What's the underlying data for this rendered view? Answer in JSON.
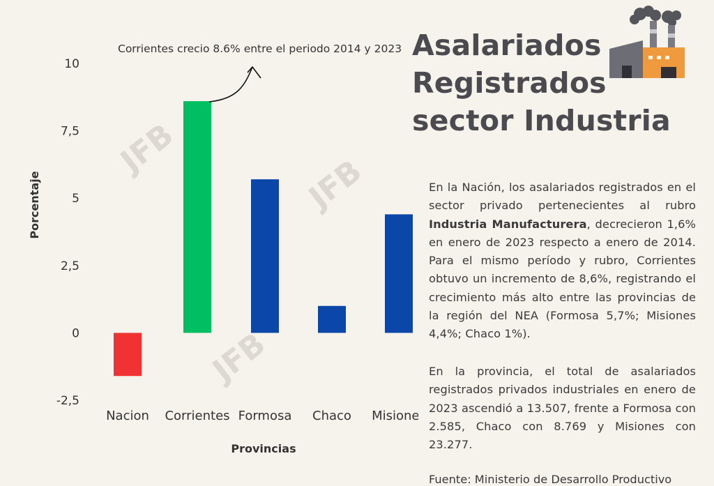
{
  "title_lines": [
    "Asalariados",
    "Registrados",
    "sector Industria"
  ],
  "annotation": "Corrientes crecio 8.6% entre el periodo 2014 y 2023",
  "watermark": "JFB",
  "paragraph1": {
    "pre": "En la Nación, los asalariados registrados en el sector privado pertenecientes al rubro ",
    "bold": "Industria Manufacturera",
    "post": ", decrecieron 1,6% en enero de 2023 respecto a enero de 2014. Para el mismo período y rubro, Corrientes obtuvo un incremento de 8,6%, registrando el crecimiento más alto entre las provincias de la región del NEA (Formosa 5,7%; Misiones 4,4%; Chaco 1%)."
  },
  "paragraph2": "En la provincia, el total de asalariados registrados privados industriales en enero de 2023 ascendió a 13.507, frente a Formosa con 2.585, Chaco con 8.769 y Misiones con 23.277.",
  "source": "Fuente: Ministerio de Desarrollo Productivo",
  "icons": {
    "factory": "factory-icon"
  },
  "chart_data": {
    "type": "bar",
    "categories": [
      "Nacion",
      "Corrientes",
      "Formosa",
      "Chaco",
      "Misiones"
    ],
    "values": [
      -1.6,
      8.6,
      5.7,
      1.0,
      4.4
    ],
    "colors": [
      "#f03232",
      "#00bf63",
      "#0a47a9",
      "#0a47a9",
      "#0a47a9"
    ],
    "xlabel": "Provincias",
    "ylabel": "Porcentaje",
    "ylim": [
      -2.5,
      10
    ],
    "yticks": [
      -2.5,
      0,
      2.5,
      5,
      7.5,
      10
    ],
    "ytick_labels": [
      "-2,5",
      "0",
      "2,5",
      "5",
      "7,5",
      "10"
    ],
    "grid": false,
    "legend": "none"
  }
}
